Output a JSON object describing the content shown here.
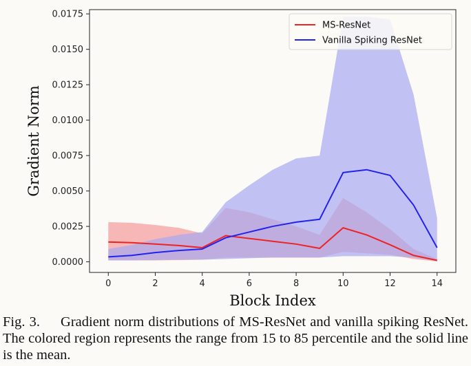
{
  "chart_data": {
    "type": "line",
    "title": "",
    "xlabel": "Block Index",
    "ylabel": "Gradient Norm",
    "xlim": [
      -0.8,
      14.8
    ],
    "ylim": [
      -0.00075,
      0.0178
    ],
    "xticks": [
      0,
      2,
      4,
      6,
      8,
      10,
      12,
      14
    ],
    "xtick_labels": [
      "0",
      "2",
      "4",
      "6",
      "8",
      "10",
      "12",
      "14"
    ],
    "yticks": [
      0,
      0.0025,
      0.005,
      0.0075,
      0.01,
      0.0125,
      0.015,
      0.0175
    ],
    "ytick_labels": [
      "0.0000",
      "0.0025",
      "0.0050",
      "0.0075",
      "0.0100",
      "0.0125",
      "0.0150",
      "0.0175"
    ],
    "grid": false,
    "legend": "top-right",
    "x": [
      0,
      1,
      2,
      3,
      4,
      5,
      6,
      7,
      8,
      9,
      10,
      11,
      12,
      13,
      14
    ],
    "series": [
      {
        "name": "MS-ResNet",
        "color": "#ee2222",
        "band_color": "#f4a0a0",
        "mean": [
          0.0014,
          0.00135,
          0.00125,
          0.00115,
          0.001,
          0.00185,
          0.00165,
          0.00145,
          0.00125,
          0.00095,
          0.0024,
          0.0019,
          0.0012,
          0.00045,
          0.0001
        ],
        "p15": [
          0.0001,
          0.0001,
          0.0001,
          0.00012,
          0.00015,
          0.0003,
          0.0003,
          0.0003,
          0.0003,
          0.0003,
          0.0007,
          0.0006,
          0.0005,
          0.0002,
          3e-05
        ],
        "p85": [
          0.0028,
          0.00275,
          0.0026,
          0.0024,
          0.002,
          0.0038,
          0.0035,
          0.003,
          0.0025,
          0.0019,
          0.0045,
          0.0035,
          0.0023,
          0.0009,
          0.0002
        ]
      },
      {
        "name": "Vanilla Spiking ResNet",
        "color": "#2222ee",
        "band_color": "#a8a8f2",
        "mean": [
          0.00035,
          0.00045,
          0.00065,
          0.0008,
          0.0009,
          0.0017,
          0.0021,
          0.0025,
          0.0028,
          0.003,
          0.0063,
          0.0065,
          0.0061,
          0.004,
          0.001
        ],
        "p15": [
          0.0001,
          0.0001,
          0.00012,
          0.00015,
          0.00015,
          0.0002,
          0.00025,
          0.0003,
          0.0003,
          0.0003,
          0.0004,
          0.0004,
          0.0004,
          0.0003,
          5e-05
        ],
        "p85": [
          0.0009,
          0.0012,
          0.0016,
          0.0019,
          0.0021,
          0.0042,
          0.0054,
          0.0065,
          0.0073,
          0.0075,
          0.0173,
          0.0173,
          0.0171,
          0.0118,
          0.0031
        ]
      }
    ]
  },
  "caption": {
    "label": "Fig. 3.",
    "text": "Gradient norm distributions of MS-ResNet and vanilla spiking ResNet. The colored region represents the range from 15 to 85 percentile and the solid line is the mean."
  }
}
